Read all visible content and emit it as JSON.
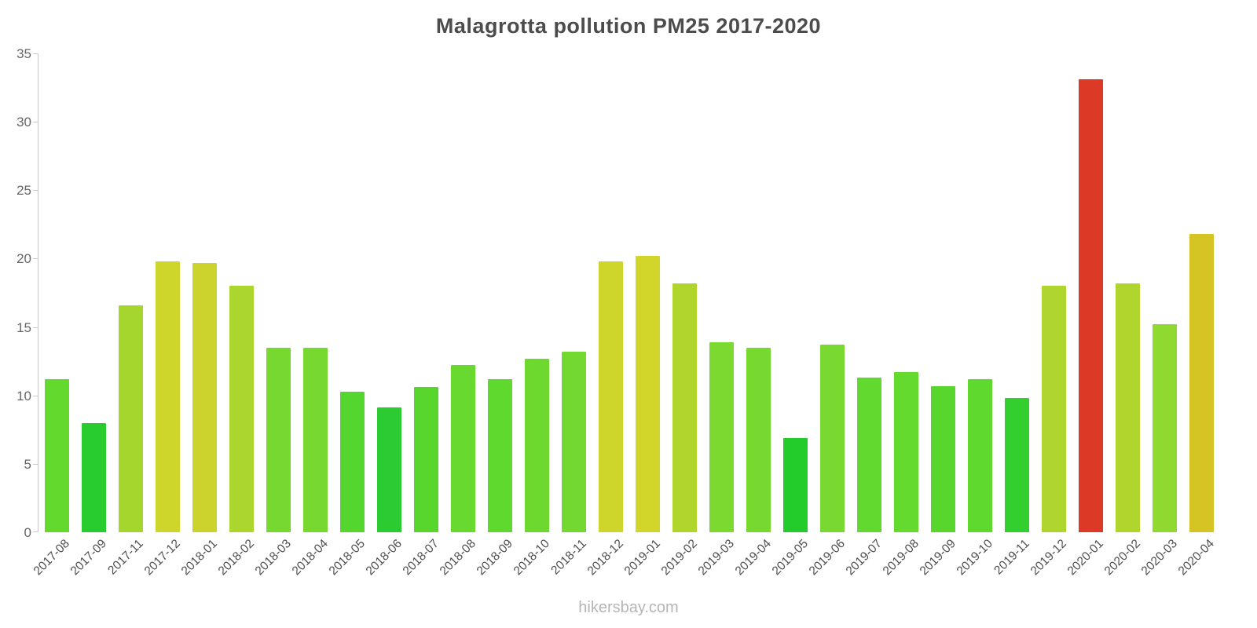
{
  "chart_data": {
    "type": "bar",
    "title": "Malagrotta pollution PM25 2017-2020",
    "xlabel": "",
    "ylabel": "",
    "ylim": [
      0,
      35
    ],
    "yticks": [
      0,
      5,
      10,
      15,
      20,
      25,
      30,
      35
    ],
    "grid": false,
    "legend_position": "none",
    "categories": [
      "2017-08",
      "2017-09",
      "2017-11",
      "2017-12",
      "2018-01",
      "2018-02",
      "2018-03",
      "2018-04",
      "2018-05",
      "2018-06",
      "2018-07",
      "2018-08",
      "2018-09",
      "2018-10",
      "2018-11",
      "2018-12",
      "2019-01",
      "2019-02",
      "2019-03",
      "2019-04",
      "2019-05",
      "2019-06",
      "2019-07",
      "2019-08",
      "2019-09",
      "2019-10",
      "2019-11",
      "2019-12",
      "2020-01",
      "2020-02",
      "2020-03",
      "2020-04"
    ],
    "values": [
      11.2,
      8.0,
      16.6,
      19.8,
      19.7,
      18.0,
      13.5,
      13.5,
      10.3,
      9.1,
      10.6,
      12.2,
      11.2,
      12.7,
      13.2,
      19.8,
      20.2,
      18.2,
      13.9,
      13.5,
      6.9,
      13.7,
      11.3,
      11.7,
      10.7,
      11.2,
      9.8,
      18.0,
      33.1,
      18.2,
      15.2,
      21.8
    ],
    "colors": [
      "#63d92e",
      "#28cc2e",
      "#a5d62e",
      "#ced52b",
      "#ccd32c",
      "#aad62e",
      "#77d930",
      "#77d930",
      "#55d62e",
      "#2bcc31",
      "#58d62e",
      "#68d92e",
      "#60d92e",
      "#6dd92e",
      "#73d930",
      "#ced52b",
      "#d2d52a",
      "#b0d62d",
      "#7bd930",
      "#77d930",
      "#24cc2b",
      "#79d930",
      "#61d92e",
      "#64d92e",
      "#59d62e",
      "#60d92e",
      "#33cf2e",
      "#aed62e",
      "#dc3a27",
      "#b0d62d",
      "#8fd930",
      "#d5c424"
    ]
  },
  "footer": {
    "text": "hikersbay.com"
  }
}
